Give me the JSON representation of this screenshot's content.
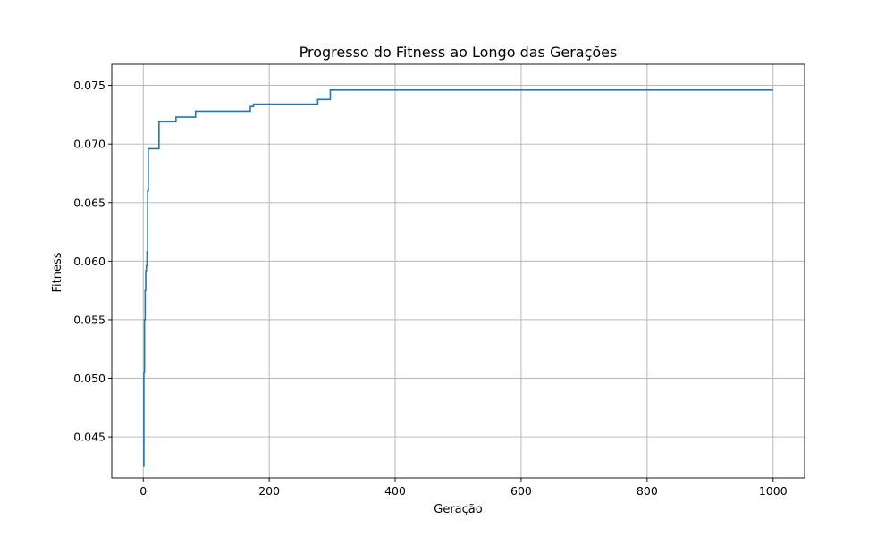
{
  "chart_data": {
    "type": "line",
    "title": "Progresso do Fitness ao Longo das Gerações",
    "xlabel": "Geração",
    "ylabel": "Fitness",
    "xlim": [
      -50,
      1050
    ],
    "ylim": [
      0.0415,
      0.0768
    ],
    "xticks": [
      0,
      200,
      400,
      600,
      800,
      1000
    ],
    "xtick_labels": [
      "0",
      "200",
      "400",
      "600",
      "800",
      "1000"
    ],
    "yticks": [
      0.045,
      0.05,
      0.055,
      0.06,
      0.065,
      0.07,
      0.075
    ],
    "ytick_labels": [
      "0.045",
      "0.050",
      "0.055",
      "0.060",
      "0.065",
      "0.070",
      "0.075"
    ],
    "grid": true,
    "step": "post",
    "series": [
      {
        "color": "#1f77b4",
        "x": [
          0,
          1,
          2,
          3,
          4,
          5,
          6,
          7,
          8,
          25,
          52,
          83,
          170,
          175,
          277,
          297,
          1000
        ],
        "y": [
          0.0425,
          0.0505,
          0.055,
          0.0575,
          0.0592,
          0.0596,
          0.0608,
          0.066,
          0.0696,
          0.0719,
          0.0723,
          0.0728,
          0.0732,
          0.0734,
          0.0738,
          0.0746,
          0.0746
        ]
      }
    ]
  }
}
